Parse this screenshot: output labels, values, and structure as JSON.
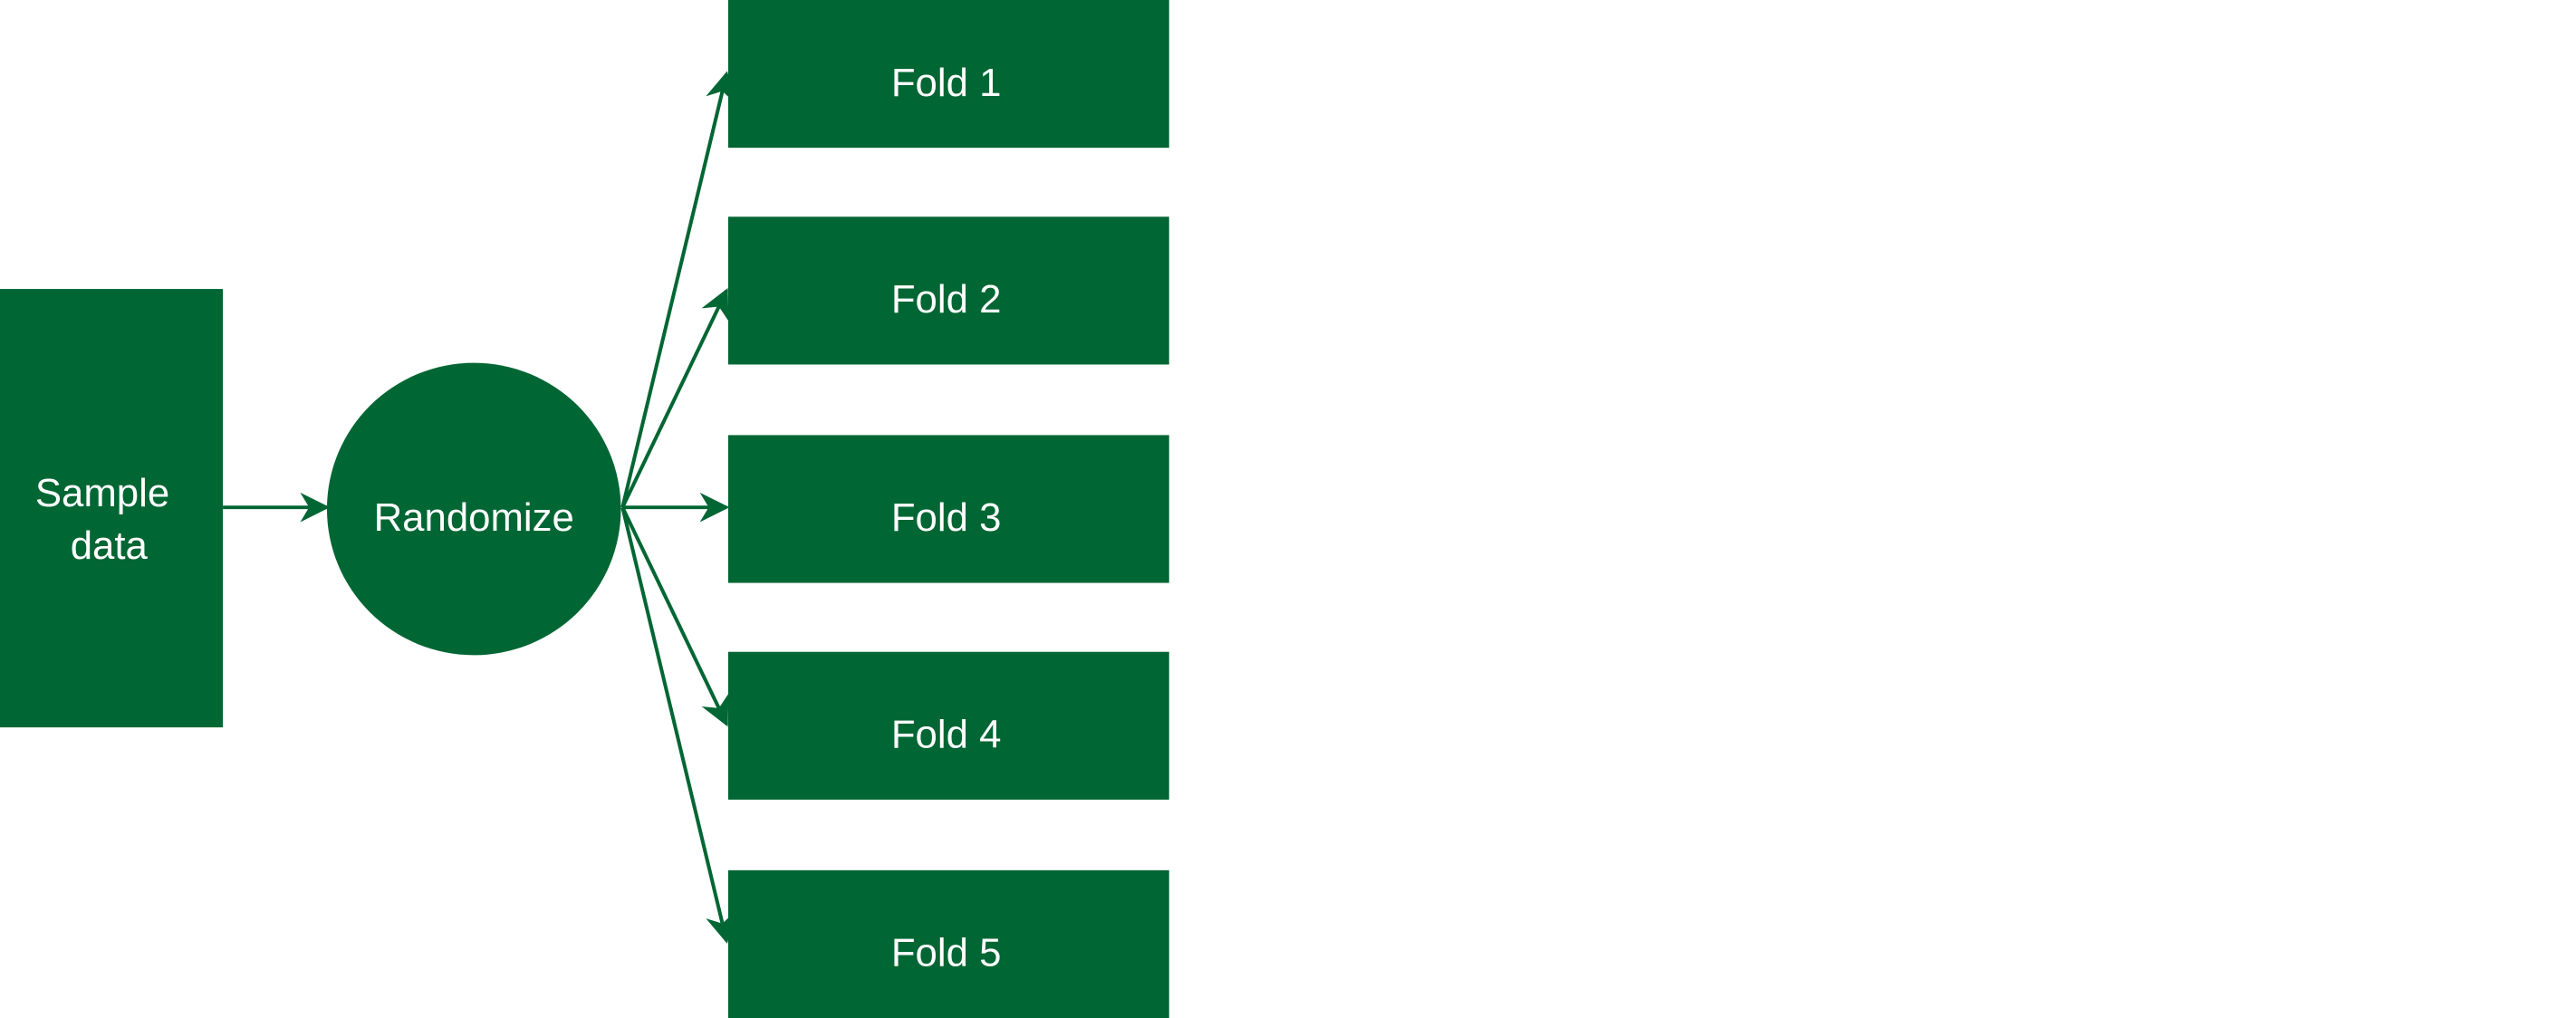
{
  "colors": {
    "node_fill": "#006633",
    "edge": "#006633",
    "text": "#ffffff",
    "background": "#ffffff"
  },
  "nodes": {
    "sample": {
      "line1": "Sample",
      "line2": "data"
    },
    "randomize": {
      "label": "Randomize"
    },
    "folds": [
      {
        "label": "Fold 1"
      },
      {
        "label": "Fold 2"
      },
      {
        "label": "Fold 3"
      },
      {
        "label": "Fold 4"
      },
      {
        "label": "Fold 5"
      }
    ]
  },
  "edges": [
    {
      "from": "sample",
      "to": "randomize"
    },
    {
      "from": "randomize",
      "to": "fold-1"
    },
    {
      "from": "randomize",
      "to": "fold-2"
    },
    {
      "from": "randomize",
      "to": "fold-3"
    },
    {
      "from": "randomize",
      "to": "fold-4"
    },
    {
      "from": "randomize",
      "to": "fold-5"
    }
  ]
}
